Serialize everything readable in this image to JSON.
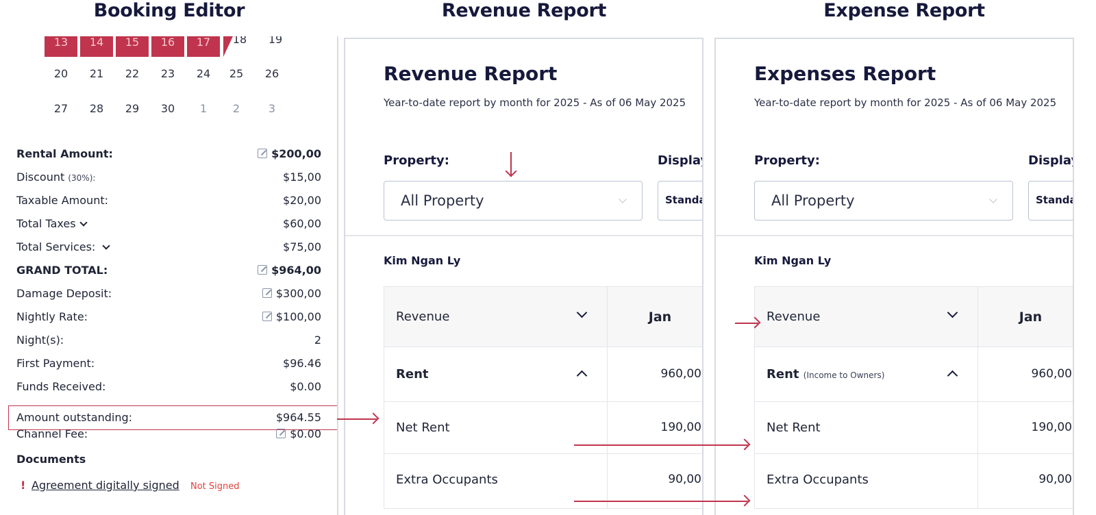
{
  "headings": {
    "booking": "Booking Editor",
    "revenue": "Revenue Report",
    "expense": "Expense Report"
  },
  "calendar": {
    "selected": [
      "13",
      "14",
      "15",
      "16",
      "17"
    ],
    "row1_rest": [
      "18",
      "19"
    ],
    "row2": [
      "20",
      "21",
      "22",
      "23",
      "24",
      "25",
      "26"
    ],
    "row3": [
      "27",
      "28",
      "29",
      "30"
    ],
    "row3_next": [
      "1",
      "2",
      "3"
    ]
  },
  "booking": {
    "rental_amount": {
      "label": "Rental Amount:",
      "value": "$200,00"
    },
    "discount": {
      "label": "Discount",
      "pct": "(30%):",
      "value": "$15,00"
    },
    "taxable": {
      "label": "Taxable Amount:",
      "value": "$20,00"
    },
    "taxes": {
      "label": "Total Taxes",
      "value": "$60,00"
    },
    "services": {
      "label": "Total Services:",
      "value": "$75,00"
    },
    "grand_total": {
      "label": "GRAND TOTAL:",
      "value": "$964,00"
    },
    "damage_deposit": {
      "label": "Damage Deposit:",
      "value": "$300,00"
    },
    "nightly_rate": {
      "label": "Nightly Rate:",
      "value": "$100,00"
    },
    "nights": {
      "label": "Night(s):",
      "value": "2"
    },
    "first_payment": {
      "label": "First Payment:",
      "value": "$96.46"
    },
    "funds_received": {
      "label": "Funds Received:",
      "value": "$0.00"
    },
    "outstanding": {
      "label": "Amount outstanding:",
      "value": "$964.55"
    },
    "channel_fee": {
      "label": "Channel Fee:",
      "value": "$0.00"
    },
    "documents_title": "Documents",
    "warn_mark": "!",
    "agreement_link": "Agreement digitally signed",
    "agreement_status": "Not Signed"
  },
  "revenue_report": {
    "title": "Revenue Report",
    "subtitle": "Year-to-date report by month for 2025 - As of 06 May 2025",
    "property_label": "Property:",
    "display_label": "Display",
    "property_value": "All Property",
    "display_value": "Standard",
    "owner": "Kim Ngan Ly",
    "header_col": "Revenue",
    "month": "Jan",
    "rows": [
      {
        "label": "Rent",
        "note": "",
        "value": "960,00"
      },
      {
        "label": "Net Rent",
        "value": "190,00"
      },
      {
        "label": "Extra Occupants",
        "value": "90,00"
      }
    ]
  },
  "expense_report": {
    "title": "Expenses Report",
    "subtitle": "Year-to-date report by month for 2025 - As of 06 May 2025",
    "property_label": "Property:",
    "display_label": "Display",
    "property_value": "All Property",
    "display_value": "Standard",
    "owner": "Kim Ngan Ly",
    "header_col": "Revenue",
    "month": "Jan",
    "rows": [
      {
        "label": "Rent",
        "note": "(Income to Owners)",
        "value": "960,00"
      },
      {
        "label": "Net Rent",
        "value": "190,00"
      },
      {
        "label": "Extra Occupants",
        "value": "90,00"
      }
    ]
  },
  "colors": {
    "accent": "#c0344d",
    "heading": "#16193b",
    "border": "#d8dbe2"
  }
}
